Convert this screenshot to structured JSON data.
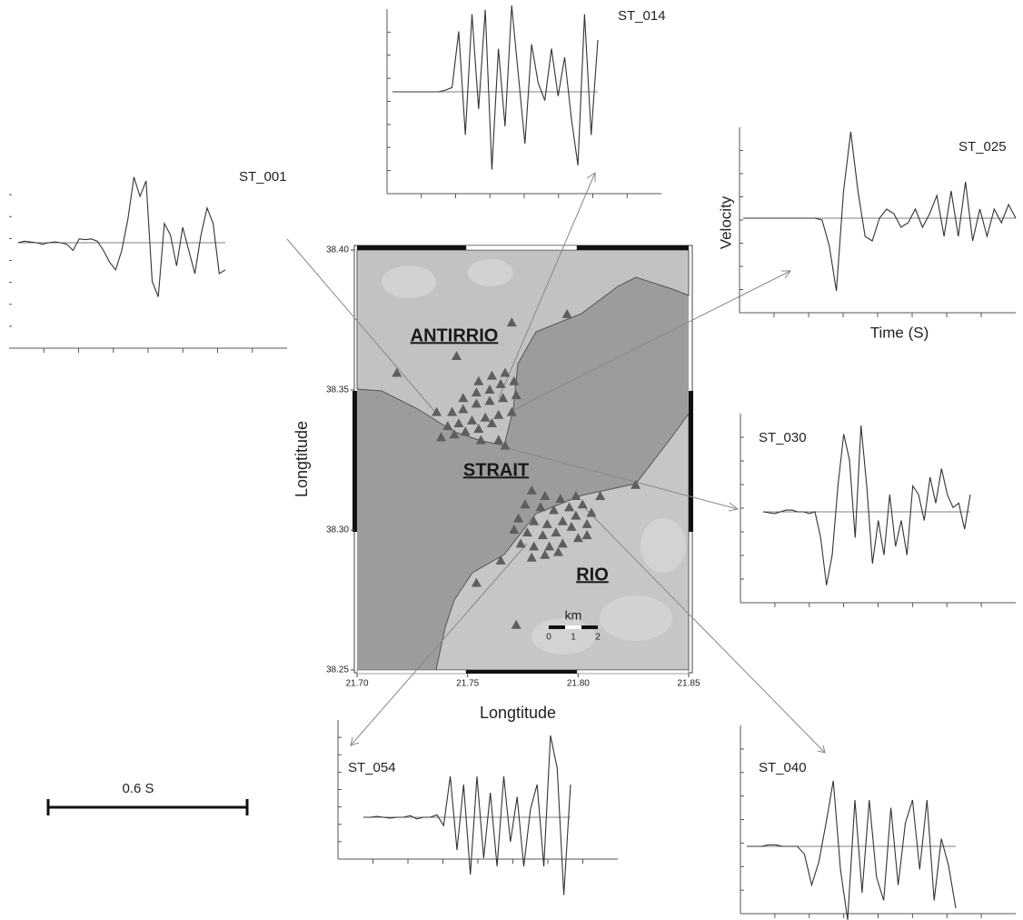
{
  "chart_data": [
    {
      "type": "map",
      "xlabel": "Longtitude",
      "ylabel": "Longtitude",
      "xlim": [
        21.7,
        21.85
      ],
      "ylim": [
        38.25,
        38.4
      ],
      "xticks": [
        {
          "value": 21.7,
          "label": "21.70"
        },
        {
          "value": 21.75,
          "label": "21.75"
        },
        {
          "value": 21.8,
          "label": "21.80"
        },
        {
          "value": 21.85,
          "label": "21.85"
        }
      ],
      "yticks": [
        {
          "value": 38.25,
          "label": "38.25"
        },
        {
          "value": 38.3,
          "label": "38.30"
        },
        {
          "value": 38.35,
          "label": "38.35"
        },
        {
          "value": 38.4,
          "label": "38.40"
        }
      ],
      "annotations": [
        "ANTIRRIO",
        "STRAIT",
        "RIO"
      ],
      "scale_bar": {
        "unit": "km",
        "ticks": [
          0,
          1,
          2
        ]
      },
      "color": "#5e5e5e",
      "stations": {
        "x": [
          21.767,
          21.761,
          21.755,
          21.771,
          21.765,
          21.76,
          21.754,
          21.748,
          21.772,
          21.766,
          21.76,
          21.754,
          21.748,
          21.743,
          21.736,
          21.77,
          21.764,
          21.758,
          21.752,
          21.746,
          21.741,
          21.761,
          21.755,
          21.749,
          21.744,
          21.738,
          21.764,
          21.767,
          21.756,
          21.779,
          21.785,
          21.792,
          21.799,
          21.776,
          21.783,
          21.789,
          21.796,
          21.802,
          21.773,
          21.78,
          21.786,
          21.793,
          21.799,
          21.806,
          21.771,
          21.777,
          21.784,
          21.79,
          21.797,
          21.804,
          21.774,
          21.78,
          21.787,
          21.793,
          21.8,
          21.779,
          21.785,
          21.791,
          21.718,
          21.745,
          21.77,
          21.795,
          21.81,
          21.826,
          21.804,
          21.765,
          21.754,
          21.772
        ],
        "y": [
          38.356,
          38.355,
          38.353,
          38.353,
          38.352,
          38.35,
          38.349,
          38.347,
          38.348,
          38.347,
          38.346,
          38.345,
          38.343,
          38.342,
          38.342,
          38.342,
          38.341,
          38.34,
          38.339,
          38.338,
          38.337,
          38.338,
          38.336,
          38.335,
          38.334,
          38.333,
          38.332,
          38.33,
          38.332,
          38.314,
          38.312,
          38.311,
          38.312,
          38.309,
          38.308,
          38.307,
          38.308,
          38.309,
          38.304,
          38.303,
          38.302,
          38.303,
          38.305,
          38.306,
          38.3,
          38.299,
          38.298,
          38.299,
          38.301,
          38.302,
          38.295,
          38.294,
          38.294,
          38.295,
          38.297,
          38.29,
          38.291,
          38.292,
          38.356,
          38.362,
          38.374,
          38.377,
          38.312,
          38.316,
          38.298,
          38.289,
          38.281,
          38.266
        ]
      }
    },
    {
      "type": "line",
      "title": "ST_001",
      "ylim": [
        -1,
        1
      ],
      "color": "#333333",
      "values": [
        0,
        0.02,
        0.01,
        0,
        -0.02,
        0,
        0.01,
        0,
        -0.02,
        -0.1,
        0.05,
        0.04,
        0.05,
        0.02,
        -0.1,
        -0.25,
        -0.35,
        -0.1,
        0.3,
        0.85,
        0.6,
        0.8,
        -0.5,
        -0.7,
        0.25,
        0.1,
        -0.3,
        0.2,
        -0.1,
        -0.4,
        0.1,
        0.45,
        0.25,
        -0.4,
        -0.35
      ]
    },
    {
      "type": "line",
      "title": "ST_014",
      "ylim": [
        -1,
        1
      ],
      "color": "#333333",
      "values": [
        0,
        0,
        0,
        0,
        0,
        0,
        0,
        0,
        0.02,
        0.05,
        0.7,
        -0.5,
        0.9,
        -0.2,
        0.95,
        -0.9,
        0.5,
        -0.4,
        1,
        0.2,
        -0.6,
        0.55,
        0.1,
        -0.1,
        0.5,
        -0.05,
        0.4,
        -0.3,
        -0.85,
        0.9,
        -0.5,
        0.6
      ]
    },
    {
      "type": "line",
      "title": "ST_025",
      "xlabel": "Time (S)",
      "ylabel": "Velocity",
      "ylim": [
        -1,
        1
      ],
      "color": "#333333",
      "values": [
        0,
        0,
        0,
        0,
        0,
        0,
        0,
        0,
        0,
        0,
        0,
        -0.02,
        -0.3,
        -0.8,
        0.3,
        0.95,
        0.3,
        -0.2,
        -0.25,
        0,
        0.1,
        0.05,
        -0.1,
        -0.05,
        0.1,
        -0.1,
        0.05,
        0.25,
        -0.2,
        0.3,
        -0.2,
        0.4,
        -0.25,
        0.1,
        -0.2,
        0.1,
        -0.05,
        0.15,
        0
      ]
    },
    {
      "type": "line",
      "title": "ST_030",
      "ylim": [
        -1,
        1
      ],
      "color": "#333333",
      "values": [
        0,
        -0.01,
        -0.02,
        0,
        0.02,
        0.02,
        0,
        0,
        -0.02,
        0,
        -0.3,
        -0.85,
        -0.5,
        0.3,
        0.9,
        0.6,
        -0.3,
        1,
        0.3,
        -0.6,
        -0.1,
        -0.5,
        0.2,
        -0.4,
        -0.1,
        -0.5,
        0.3,
        0.2,
        -0.1,
        0.4,
        0.1,
        0.5,
        0.2,
        0.05,
        0.1,
        -0.2,
        0.2
      ]
    },
    {
      "type": "line",
      "title": "ST_054",
      "ylim": [
        -1,
        1
      ],
      "color": "#333333",
      "values": [
        0,
        0,
        0.01,
        0,
        -0.01,
        0,
        0,
        0.02,
        -0.02,
        0,
        0,
        0.03,
        -0.1,
        0.5,
        -0.4,
        0.4,
        -0.7,
        0.5,
        -0.5,
        0.3,
        -0.6,
        0.5,
        -0.3,
        0.25,
        -0.6,
        0.1,
        0.4,
        -0.6,
        1,
        0.6,
        -0.95,
        0.4
      ]
    },
    {
      "type": "line",
      "title": "ST_040",
      "ylim": [
        -1,
        1
      ],
      "color": "#333333",
      "values": [
        0,
        0,
        0,
        0.02,
        0.02,
        0,
        0,
        0,
        -0.1,
        -0.5,
        -0.2,
        0.3,
        0.85,
        -0.3,
        -0.95,
        0.6,
        -0.6,
        0.6,
        -0.4,
        -0.7,
        0.5,
        -0.5,
        0.3,
        0.6,
        -0.3,
        0.6,
        -0.7,
        0.1,
        -0.25,
        -0.8
      ]
    }
  ],
  "time_scale": "0.6 S"
}
